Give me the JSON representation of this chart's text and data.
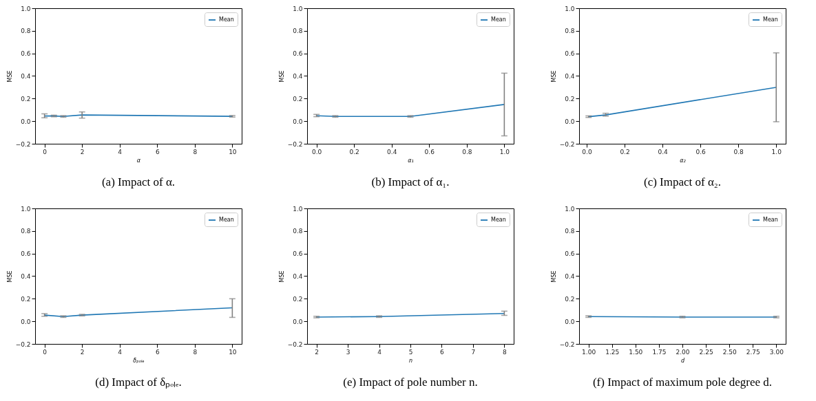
{
  "chart_data": [
    {
      "type": "line",
      "title": "(a) Impact of α.",
      "xlabel": "α",
      "ylabel": "MSE",
      "x": [
        0,
        0.5,
        1,
        2,
        10
      ],
      "xlim": [
        -0.5,
        10.5
      ],
      "xticks": [
        0,
        2,
        4,
        6,
        8,
        10
      ],
      "ylim": [
        -0.2,
        1.0
      ],
      "yticks": [
        {
          "value": -0.2,
          "label": "−0.2"
        },
        {
          "value": 0,
          "label": "0.0"
        },
        0.2,
        0.4,
        0.6,
        0.8,
        {
          "value": 1,
          "label": "1.0"
        }
      ],
      "legend": "top right",
      "grid": false,
      "series": [
        {
          "name": "Mean",
          "color": "#1f77b4",
          "values": [
            0.046,
            0.046,
            0.042,
            0.055,
            0.043
          ],
          "errors": [
            [
              0.03,
              0.065
            ],
            [
              0.039,
              0.053
            ],
            [
              0.035,
              0.049
            ],
            [
              0.027,
              0.082
            ],
            [
              0.036,
              0.05
            ]
          ]
        }
      ]
    },
    {
      "type": "line",
      "title": "(b) Impact of α₁.",
      "xlabel": "α₁",
      "ylabel": "MSE",
      "x": [
        0,
        0.1,
        0.5,
        1
      ],
      "xlim": [
        -0.05,
        1.05
      ],
      "xticks": [
        {
          "value": 0,
          "label": "0.0"
        },
        0.2,
        0.4,
        0.6,
        0.8,
        {
          "value": 1,
          "label": "1.0"
        }
      ],
      "ylim": [
        -0.2,
        1.0
      ],
      "yticks": [
        {
          "value": -0.2,
          "label": "−0.2"
        },
        {
          "value": 0,
          "label": "0.0"
        },
        0.2,
        0.4,
        0.6,
        0.8,
        {
          "value": 1,
          "label": "1.0"
        }
      ],
      "legend": "top right",
      "grid": false,
      "series": [
        {
          "name": "Mean",
          "color": "#1f77b4",
          "values": [
            0.048,
            0.042,
            0.042,
            0.148
          ],
          "errors": [
            [
              0.04,
              0.06
            ],
            [
              0.035,
              0.049
            ],
            [
              0.035,
              0.049
            ],
            [
              -0.13,
              0.425
            ]
          ]
        }
      ]
    },
    {
      "type": "line",
      "title": "(c) Impact of α₂.",
      "xlabel": "α₂",
      "ylabel": "MSE",
      "x": [
        0.01,
        0.1,
        1
      ],
      "xlim": [
        -0.04,
        1.05
      ],
      "xticks": [
        {
          "value": 0,
          "label": "0.0"
        },
        0.2,
        0.4,
        0.6,
        0.8,
        {
          "value": 1,
          "label": "1.0"
        }
      ],
      "ylim": [
        -0.2,
        1.0
      ],
      "yticks": [
        {
          "value": -0.2,
          "label": "−0.2"
        },
        {
          "value": 0,
          "label": "0.0"
        },
        0.2,
        0.4,
        0.6,
        0.8,
        {
          "value": 1,
          "label": "1.0"
        }
      ],
      "legend": "top right",
      "grid": false,
      "series": [
        {
          "name": "Mean",
          "color": "#1f77b4",
          "values": [
            0.04,
            0.055,
            0.3
          ],
          "errors": [
            [
              0.033,
              0.047
            ],
            [
              0.045,
              0.07
            ],
            [
              -0.005,
              0.605
            ]
          ]
        }
      ]
    },
    {
      "type": "line",
      "title": "(d) Impact of δₚₒₗₑ.",
      "xlabel": "δₚₒₗₑ",
      "ylabel": "MSE",
      "x": [
        0,
        1,
        2,
        10
      ],
      "xlim": [
        -0.5,
        10.5
      ],
      "xticks": [
        0,
        2,
        4,
        6,
        8,
        10
      ],
      "ylim": [
        -0.2,
        1.0
      ],
      "yticks": [
        {
          "value": -0.2,
          "label": "−0.2"
        },
        {
          "value": 0,
          "label": "0.0"
        },
        0.2,
        0.4,
        0.6,
        0.8,
        {
          "value": 1,
          "label": "1.0"
        }
      ],
      "legend": "top right",
      "grid": false,
      "series": [
        {
          "name": "Mean",
          "color": "#1f77b4",
          "values": [
            0.055,
            0.042,
            0.055,
            0.12
          ],
          "errors": [
            [
              0.045,
              0.068
            ],
            [
              0.035,
              0.049
            ],
            [
              0.048,
              0.062
            ],
            [
              0.035,
              0.2
            ]
          ]
        }
      ]
    },
    {
      "type": "line",
      "title": "(e) Impact of pole number n.",
      "xlabel": "n",
      "ylabel": "MSE",
      "x": [
        2,
        4,
        8
      ],
      "xlim": [
        1.7,
        8.3
      ],
      "xticks": [
        2,
        3,
        4,
        5,
        6,
        7,
        8
      ],
      "ylim": [
        -0.2,
        1.0
      ],
      "yticks": [
        {
          "value": -0.2,
          "label": "−0.2"
        },
        {
          "value": 0,
          "label": "0.0"
        },
        0.2,
        0.4,
        0.6,
        0.8,
        {
          "value": 1,
          "label": "1.0"
        }
      ],
      "legend": "top right",
      "grid": false,
      "series": [
        {
          "name": "Mean",
          "color": "#1f77b4",
          "values": [
            0.038,
            0.042,
            0.07
          ],
          "errors": [
            [
              0.031,
              0.045
            ],
            [
              0.035,
              0.049
            ],
            [
              0.053,
              0.09
            ]
          ]
        }
      ]
    },
    {
      "type": "line",
      "title": "(f) Impact of maximum pole degree d.",
      "xlabel": "d",
      "ylabel": "MSE",
      "x": [
        1,
        2,
        3
      ],
      "xlim": [
        0.9,
        3.1
      ],
      "xticks": [
        {
          "value": 1,
          "label": "1.00"
        },
        1.25,
        {
          "value": 1.5,
          "label": "1.50"
        },
        1.75,
        {
          "value": 2,
          "label": "2.00"
        },
        2.25,
        {
          "value": 2.5,
          "label": "2.50"
        },
        2.75,
        {
          "value": 3,
          "label": "3.00"
        }
      ],
      "ylim": [
        -0.2,
        1.0
      ],
      "yticks": [
        {
          "value": -0.2,
          "label": "−0.2"
        },
        {
          "value": 0,
          "label": "0.0"
        },
        0.2,
        0.4,
        0.6,
        0.8,
        {
          "value": 1,
          "label": "1.0"
        }
      ],
      "legend": "top right",
      "grid": false,
      "series": [
        {
          "name": "Mean",
          "color": "#1f77b4",
          "values": [
            0.042,
            0.038,
            0.038
          ],
          "errors": [
            [
              0.035,
              0.049
            ],
            [
              0.031,
              0.045
            ],
            [
              0.031,
              0.045
            ]
          ]
        }
      ]
    }
  ]
}
